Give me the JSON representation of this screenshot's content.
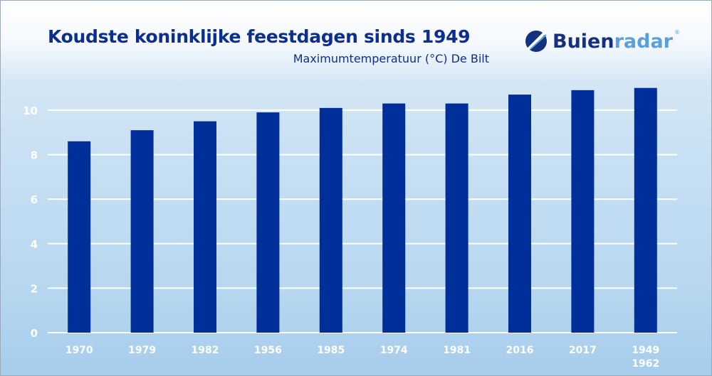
{
  "header": {
    "title": "Koudste koninklijke feestdagen sinds 1949",
    "subtitle": "Maximumtemperatuur (°C) De Bilt",
    "logo_text": "Buienradar",
    "logo_part1": "Buien",
    "logo_part2": "radar",
    "logo_mark": "®"
  },
  "colors": {
    "bar": "#002f9a",
    "title": "#0b2f91",
    "grid": "#ffffff",
    "logo_dark": "#14307f",
    "logo_light": "#5aa0da"
  },
  "chart_data": {
    "type": "bar",
    "title": "Koudste koninklijke feestdagen sinds 1949",
    "subtitle": "Maximumtemperatuur (°C) De Bilt",
    "categories": [
      [
        "1970"
      ],
      [
        "1979"
      ],
      [
        "1982"
      ],
      [
        "1956"
      ],
      [
        "1985"
      ],
      [
        "1974"
      ],
      [
        "1981"
      ],
      [
        "2016"
      ],
      [
        "2017"
      ],
      [
        "1949",
        "1962"
      ]
    ],
    "values": [
      8.6,
      9.1,
      9.5,
      9.9,
      10.1,
      10.3,
      10.3,
      10.7,
      10.9,
      11.0
    ],
    "ylim": [
      0,
      11
    ],
    "yticks": [
      "0",
      "2",
      "4",
      "6",
      "8",
      "10"
    ],
    "grid": true,
    "legend": "none"
  }
}
